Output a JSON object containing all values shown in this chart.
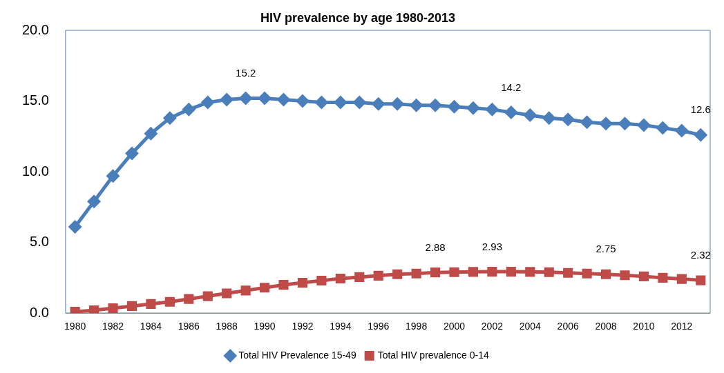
{
  "chart_data": {
    "type": "line",
    "title": "HIV prevalence by age 1980-2013",
    "categories": [
      "1980",
      null,
      "1982",
      null,
      "1984",
      null,
      "1986",
      null,
      "1988",
      null,
      "1990",
      null,
      "1992",
      null,
      "1994",
      null,
      "1996",
      null,
      "1998",
      null,
      "2000",
      null,
      "2002",
      null,
      "2004",
      null,
      "2006",
      null,
      "2008",
      null,
      "2010",
      null,
      "2012",
      null
    ],
    "series": [
      {
        "name": "Total HIV Prevalence 15-49",
        "color": "#4a7ebb",
        "marker": "diamond",
        "values": [
          6.1,
          7.9,
          9.7,
          11.3,
          12.7,
          13.8,
          14.4,
          14.9,
          15.1,
          15.2,
          15.2,
          15.1,
          15.0,
          14.9,
          14.9,
          14.9,
          14.8,
          14.8,
          14.7,
          14.7,
          14.6,
          14.5,
          14.4,
          14.2,
          14.0,
          13.8,
          13.7,
          13.5,
          13.4,
          13.4,
          13.3,
          13.1,
          12.9,
          12.6
        ],
        "value_labels": [
          null,
          null,
          null,
          null,
          null,
          null,
          null,
          null,
          null,
          "15.2",
          null,
          null,
          null,
          null,
          null,
          null,
          null,
          null,
          null,
          null,
          null,
          null,
          null,
          "14.2",
          null,
          null,
          null,
          null,
          null,
          null,
          null,
          null,
          null,
          "12.6"
        ]
      },
      {
        "name": "Total HIV prevalence 0-14",
        "color": "#be4b48",
        "marker": "square",
        "values": [
          0.1,
          0.2,
          0.35,
          0.5,
          0.65,
          0.8,
          1.0,
          1.2,
          1.4,
          1.6,
          1.8,
          2.0,
          2.15,
          2.3,
          2.45,
          2.55,
          2.65,
          2.75,
          2.8,
          2.88,
          2.9,
          2.92,
          2.93,
          2.93,
          2.92,
          2.9,
          2.85,
          2.8,
          2.75,
          2.68,
          2.6,
          2.5,
          2.42,
          2.32
        ],
        "value_labels": [
          null,
          null,
          null,
          null,
          null,
          null,
          null,
          null,
          null,
          null,
          null,
          null,
          null,
          null,
          null,
          null,
          null,
          null,
          null,
          "2.88",
          null,
          null,
          "2.93",
          null,
          null,
          null,
          null,
          null,
          "2.75",
          null,
          null,
          null,
          null,
          "2.32"
        ]
      }
    ],
    "ylim": [
      0,
      20
    ],
    "yticks": [
      {
        "value": 0,
        "label": "0.0"
      },
      {
        "value": 5,
        "label": "5.0"
      },
      {
        "value": 10,
        "label": "10.0"
      },
      {
        "value": 15,
        "label": "15.0"
      },
      {
        "value": 20,
        "label": "20.0"
      }
    ],
    "grid": false,
    "legend": "bottom",
    "line_style": "solid"
  }
}
